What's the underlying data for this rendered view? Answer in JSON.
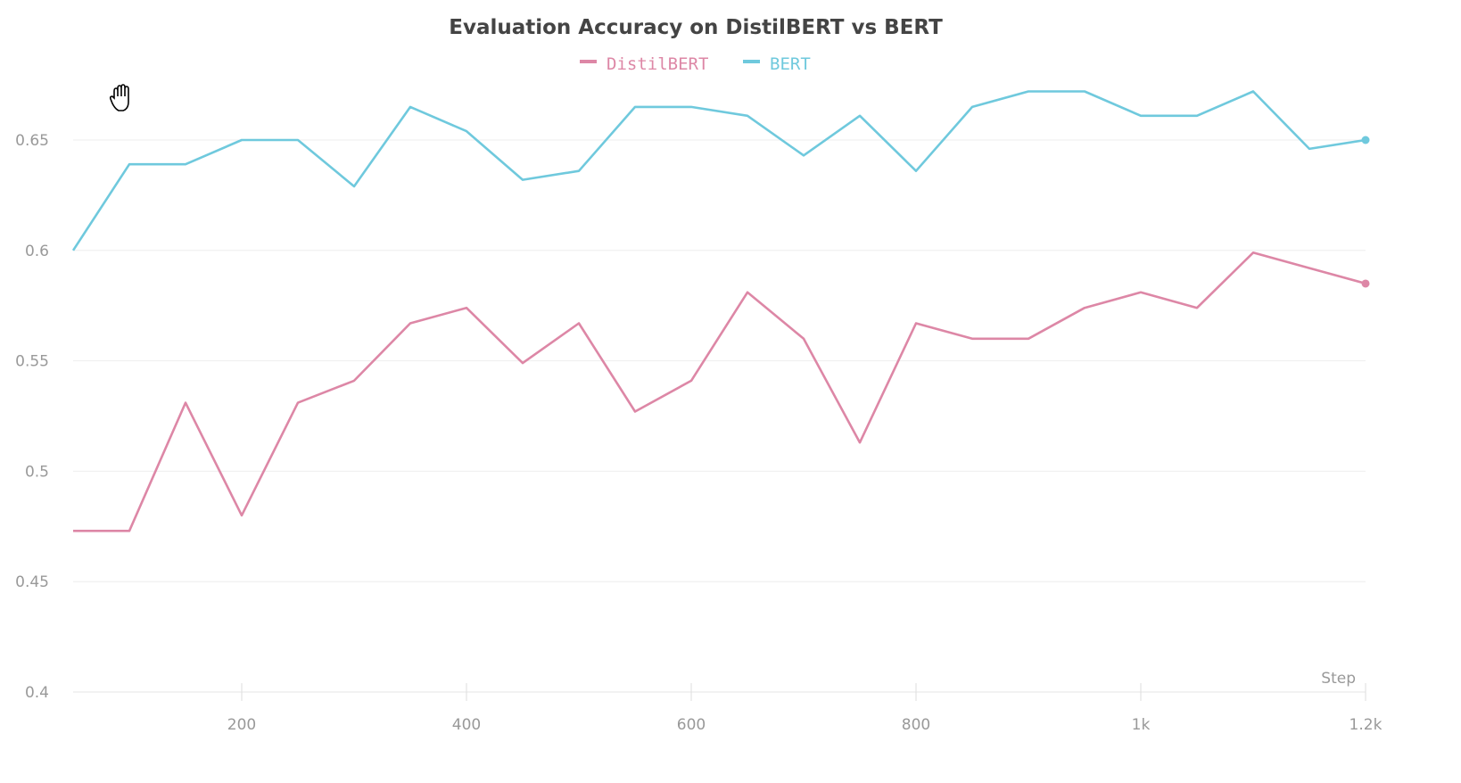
{
  "chart_data": {
    "type": "line",
    "title": "Evaluation Accuracy on DistilBERT vs BERT",
    "xlabel": "Step",
    "ylabel": "",
    "xlim": [
      50,
      1200
    ],
    "ylim": [
      0.4,
      0.675
    ],
    "grid": true,
    "legend_placement": "top-center",
    "x_ticks": [
      200,
      400,
      600,
      800,
      1000,
      1200
    ],
    "x_tick_labels": [
      "200",
      "400",
      "600",
      "800",
      "1k",
      "1.2k"
    ],
    "y_ticks": [
      0.4,
      0.45,
      0.5,
      0.55,
      0.6,
      0.65
    ],
    "y_tick_labels": [
      "0.4",
      "0.45",
      "0.5",
      "0.55",
      "0.6",
      "0.65"
    ],
    "x": [
      50,
      100,
      150,
      200,
      250,
      300,
      350,
      400,
      450,
      500,
      550,
      600,
      650,
      700,
      750,
      800,
      850,
      900,
      950,
      1000,
      1050,
      1100,
      1150,
      1200
    ],
    "series": [
      {
        "name": "DistilBERT",
        "color": "#dd87a6",
        "values": [
          0.473,
          0.473,
          0.531,
          0.48,
          0.531,
          0.541,
          0.567,
          0.574,
          0.549,
          0.567,
          0.527,
          0.541,
          0.581,
          0.56,
          0.513,
          0.567,
          0.56,
          0.56,
          0.574,
          0.581,
          0.574,
          0.599,
          0.592,
          0.585
        ]
      },
      {
        "name": "BERT",
        "color": "#6fc9dd",
        "values": [
          0.6,
          0.639,
          0.639,
          0.65,
          0.65,
          0.629,
          0.665,
          0.654,
          0.632,
          0.636,
          0.665,
          0.665,
          0.661,
          0.643,
          0.661,
          0.636,
          0.665,
          0.672,
          0.672,
          0.661,
          0.661,
          0.672,
          0.646,
          0.65
        ]
      }
    ]
  },
  "cursor_icon": "hand-grab-icon"
}
